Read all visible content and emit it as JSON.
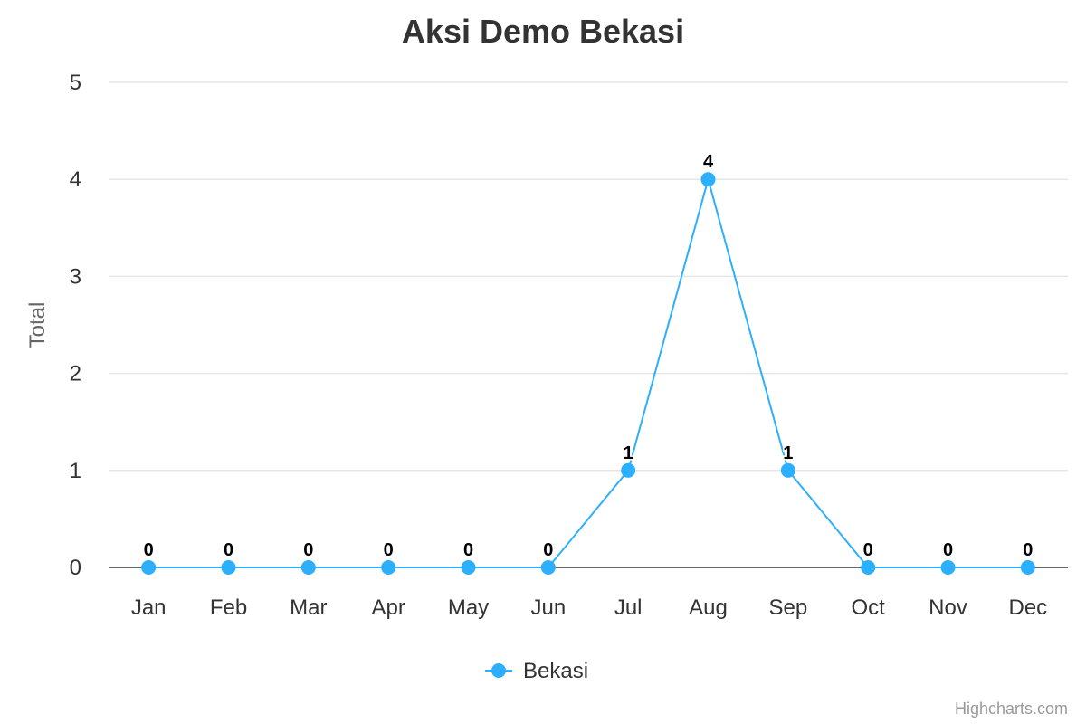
{
  "chart_data": {
    "type": "line",
    "title": "Aksi Demo Bekasi",
    "xlabel": "",
    "ylabel": "Total",
    "categories": [
      "Jan",
      "Feb",
      "Mar",
      "Apr",
      "May",
      "Jun",
      "Jul",
      "Aug",
      "Sep",
      "Oct",
      "Nov",
      "Dec"
    ],
    "series": [
      {
        "name": "Bekasi",
        "values": [
          0,
          0,
          0,
          0,
          0,
          0,
          1,
          4,
          1,
          0,
          0,
          0
        ],
        "color": "#2caffe"
      }
    ],
    "ylim": [
      0,
      5
    ],
    "yticks": [
      0,
      1,
      2,
      3,
      4,
      5
    ],
    "grid": true,
    "data_labels": true,
    "legend_position": "bottom-center"
  },
  "credits": "Highcharts.com",
  "colors": {
    "grid": "#e6e6e6",
    "axis": "#333333",
    "text": "#333333",
    "ytitle": "#666666"
  }
}
